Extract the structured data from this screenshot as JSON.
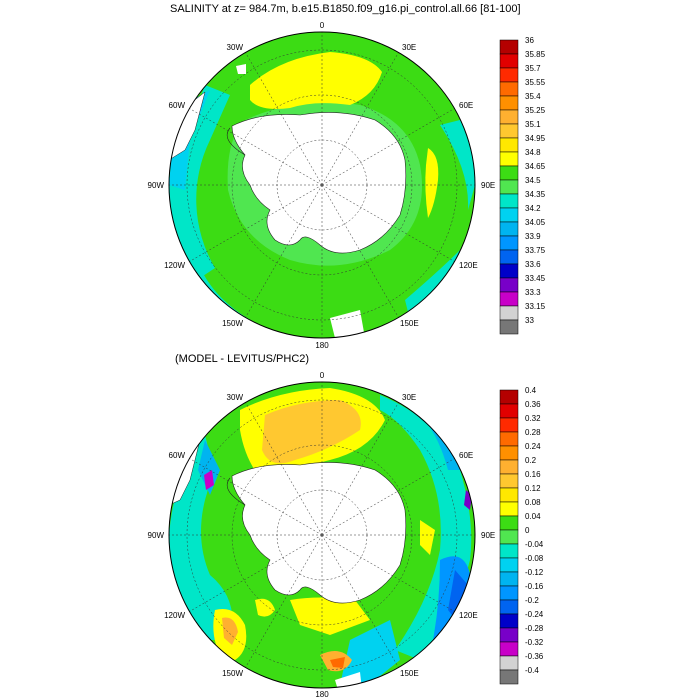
{
  "panels": [
    {
      "id": "top",
      "title": "SALINITY at z= 984.7m, b.e15.B1850.f09_g16.pi_control.all.66 [81-100]",
      "lon_labels": [
        "0",
        "30E",
        "60E",
        "90E",
        "120E",
        "150E",
        "180",
        "150W",
        "120W",
        "90W",
        "60W",
        "30W"
      ],
      "colorbar": {
        "labels": [
          "36",
          "35.85",
          "35.7",
          "35.55",
          "35.4",
          "35.25",
          "35.1",
          "34.95",
          "34.8",
          "34.65",
          "34.5",
          "34.35",
          "34.2",
          "34.05",
          "33.9",
          "33.75",
          "33.6",
          "33.45",
          "33.3",
          "33.15",
          "33"
        ],
        "colors": [
          "#b40000",
          "#e10000",
          "#ff2a00",
          "#ff6a00",
          "#ff9000",
          "#ffb030",
          "#ffc830",
          "#ffe800",
          "#ffff00",
          "#3cdc14",
          "#50e650",
          "#00e6c8",
          "#00d2f0",
          "#00b4f0",
          "#0096ff",
          "#0064f0",
          "#0000c8",
          "#7800c8",
          "#c800c8",
          "#d2d2d2",
          "#777777"
        ]
      }
    },
    {
      "id": "bottom",
      "title": "(MODEL - LEVITUS/PHC2)",
      "lon_labels": [
        "0",
        "30E",
        "60E",
        "90E",
        "120E",
        "150E",
        "180",
        "150W",
        "120W",
        "90W",
        "60W",
        "30W"
      ],
      "colorbar": {
        "labels": [
          "0.4",
          "0.36",
          "0.32",
          "0.28",
          "0.24",
          "0.2",
          "0.16",
          "0.12",
          "0.08",
          "0.04",
          "0",
          "-0.04",
          "-0.08",
          "-0.12",
          "-0.16",
          "-0.2",
          "-0.24",
          "-0.28",
          "-0.32",
          "-0.36",
          "-0.4"
        ],
        "colors": [
          "#b40000",
          "#e10000",
          "#ff2a00",
          "#ff6a00",
          "#ff9000",
          "#ffb030",
          "#ffc830",
          "#ffe800",
          "#ffff00",
          "#3cdc14",
          "#50e650",
          "#00e6c8",
          "#00d2f0",
          "#00b4f0",
          "#0096ff",
          "#0064f0",
          "#0000c8",
          "#7800c8",
          "#c800c8",
          "#d2d2d2",
          "#777777"
        ]
      }
    }
  ]
}
